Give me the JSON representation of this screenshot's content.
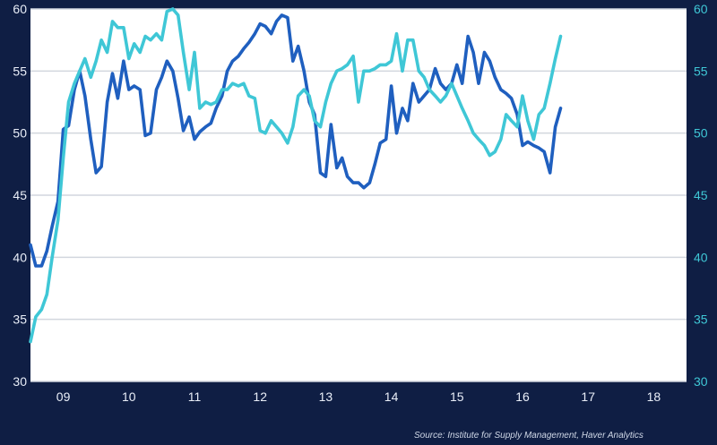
{
  "colors": {
    "background": "#0f1e44",
    "plot_background": "#ffffff",
    "grid": "#d2d6de",
    "series_dark": "#1f5fbf",
    "series_light": "#3fc7d6",
    "left_axis_text": "#e9eef8",
    "right_axis_text": "#3fc7d6"
  },
  "source": "Source: Institute for Supply Management, Haver Analytics",
  "chart_data": {
    "type": "line",
    "ylim": [
      30,
      60
    ],
    "xlim": [
      2008.5,
      2018.5
    ],
    "y_ticks": [
      30,
      35,
      40,
      45,
      50,
      55,
      60
    ],
    "y_ticks_right": [
      30,
      35,
      40,
      45,
      50,
      55,
      60
    ],
    "x_ticks": [
      {
        "x": 2009,
        "label": "09"
      },
      {
        "x": 2010,
        "label": "10"
      },
      {
        "x": 2011,
        "label": "11"
      },
      {
        "x": 2012,
        "label": "12"
      },
      {
        "x": 2013,
        "label": "13"
      },
      {
        "x": 2014,
        "label": "14"
      },
      {
        "x": 2015,
        "label": "15"
      },
      {
        "x": 2016,
        "label": "16"
      },
      {
        "x": 2017,
        "label": "17"
      },
      {
        "x": 2018,
        "label": "18"
      }
    ],
    "grid": true,
    "series": [
      {
        "color": "#1f5fbf",
        "axis": "left",
        "points": [
          [
            2008.5,
            41.0
          ],
          [
            2008.58,
            39.3
          ],
          [
            2008.67,
            39.3
          ],
          [
            2008.75,
            40.5
          ],
          [
            2008.83,
            42.5
          ],
          [
            2008.92,
            44.5
          ],
          [
            2009.0,
            50.3
          ],
          [
            2009.08,
            50.6
          ],
          [
            2009.17,
            53.5
          ],
          [
            2009.25,
            55.0
          ],
          [
            2009.33,
            53.0
          ],
          [
            2009.42,
            49.5
          ],
          [
            2009.5,
            46.8
          ],
          [
            2009.58,
            47.3
          ],
          [
            2009.67,
            52.5
          ],
          [
            2009.75,
            54.8
          ],
          [
            2009.83,
            52.8
          ],
          [
            2009.92,
            55.8
          ],
          [
            2010.0,
            53.5
          ],
          [
            2010.08,
            53.8
          ],
          [
            2010.17,
            53.5
          ],
          [
            2010.25,
            49.8
          ],
          [
            2010.33,
            50.0
          ],
          [
            2010.42,
            53.5
          ],
          [
            2010.5,
            54.5
          ],
          [
            2010.58,
            55.8
          ],
          [
            2010.67,
            55.0
          ],
          [
            2010.75,
            52.8
          ],
          [
            2010.83,
            50.2
          ],
          [
            2010.92,
            51.3
          ],
          [
            2011.0,
            49.5
          ],
          [
            2011.08,
            50.1
          ],
          [
            2011.17,
            50.5
          ],
          [
            2011.25,
            50.8
          ],
          [
            2011.33,
            52.0
          ],
          [
            2011.42,
            53.0
          ],
          [
            2011.5,
            55.0
          ],
          [
            2011.58,
            55.8
          ],
          [
            2011.67,
            56.2
          ],
          [
            2011.75,
            56.8
          ],
          [
            2011.83,
            57.3
          ],
          [
            2011.92,
            58.0
          ],
          [
            2012.0,
            58.8
          ],
          [
            2012.08,
            58.6
          ],
          [
            2012.17,
            58.0
          ],
          [
            2012.25,
            59.0
          ],
          [
            2012.33,
            59.5
          ],
          [
            2012.42,
            59.3
          ],
          [
            2012.5,
            55.8
          ],
          [
            2012.58,
            57.0
          ],
          [
            2012.67,
            55.0
          ],
          [
            2012.75,
            52.5
          ],
          [
            2012.83,
            51.5
          ],
          [
            2012.92,
            46.8
          ],
          [
            2013.0,
            46.5
          ],
          [
            2013.08,
            50.7
          ],
          [
            2013.17,
            47.2
          ],
          [
            2013.25,
            48.0
          ],
          [
            2013.33,
            46.5
          ],
          [
            2013.42,
            46.0
          ],
          [
            2013.5,
            46.0
          ],
          [
            2013.58,
            45.6
          ],
          [
            2013.67,
            46.0
          ],
          [
            2013.75,
            47.5
          ],
          [
            2013.83,
            49.2
          ],
          [
            2013.92,
            49.5
          ],
          [
            2014.0,
            53.8
          ],
          [
            2014.08,
            50.0
          ],
          [
            2014.17,
            52.0
          ],
          [
            2014.25,
            51.0
          ],
          [
            2014.33,
            54.0
          ],
          [
            2014.42,
            52.5
          ],
          [
            2014.5,
            53.0
          ],
          [
            2014.58,
            53.5
          ],
          [
            2014.67,
            55.2
          ],
          [
            2014.75,
            54.0
          ],
          [
            2014.83,
            53.5
          ],
          [
            2014.92,
            54.0
          ],
          [
            2015.0,
            55.5
          ],
          [
            2015.08,
            54.0
          ],
          [
            2015.17,
            57.8
          ],
          [
            2015.25,
            56.5
          ],
          [
            2015.33,
            54.0
          ],
          [
            2015.42,
            56.5
          ],
          [
            2015.5,
            55.8
          ],
          [
            2015.58,
            54.5
          ],
          [
            2015.67,
            53.5
          ],
          [
            2015.75,
            53.2
          ],
          [
            2015.83,
            52.8
          ],
          [
            2015.92,
            51.5
          ],
          [
            2016.0,
            49.0
          ],
          [
            2016.08,
            49.3
          ],
          [
            2016.17,
            49.0
          ],
          [
            2016.25,
            48.8
          ],
          [
            2016.33,
            48.5
          ],
          [
            2016.42,
            46.8
          ],
          [
            2016.5,
            50.5
          ],
          [
            2016.58,
            52.0
          ]
        ]
      },
      {
        "color": "#3fc7d6",
        "axis": "right",
        "points": [
          [
            2008.5,
            33.2
          ],
          [
            2008.58,
            35.2
          ],
          [
            2008.67,
            35.8
          ],
          [
            2008.75,
            37.0
          ],
          [
            2008.83,
            40.0
          ],
          [
            2008.92,
            43.0
          ],
          [
            2009.0,
            48.0
          ],
          [
            2009.08,
            52.5
          ],
          [
            2009.17,
            54.0
          ],
          [
            2009.25,
            55.0
          ],
          [
            2009.33,
            56.0
          ],
          [
            2009.42,
            54.5
          ],
          [
            2009.5,
            55.8
          ],
          [
            2009.58,
            57.5
          ],
          [
            2009.67,
            56.5
          ],
          [
            2009.75,
            59.0
          ],
          [
            2009.83,
            58.5
          ],
          [
            2009.92,
            58.5
          ],
          [
            2010.0,
            56.0
          ],
          [
            2010.08,
            57.2
          ],
          [
            2010.17,
            56.5
          ],
          [
            2010.25,
            57.8
          ],
          [
            2010.33,
            57.5
          ],
          [
            2010.42,
            58.0
          ],
          [
            2010.5,
            57.5
          ],
          [
            2010.58,
            59.8
          ],
          [
            2010.67,
            60.0
          ],
          [
            2010.75,
            59.5
          ],
          [
            2010.83,
            56.5
          ],
          [
            2010.92,
            53.5
          ],
          [
            2011.0,
            56.5
          ],
          [
            2011.08,
            52.0
          ],
          [
            2011.17,
            52.5
          ],
          [
            2011.25,
            52.3
          ],
          [
            2011.33,
            52.5
          ],
          [
            2011.42,
            53.5
          ],
          [
            2011.5,
            53.5
          ],
          [
            2011.58,
            54.0
          ],
          [
            2011.67,
            53.8
          ],
          [
            2011.75,
            54.0
          ],
          [
            2011.83,
            53.0
          ],
          [
            2011.92,
            52.8
          ],
          [
            2012.0,
            50.2
          ],
          [
            2012.08,
            50.0
          ],
          [
            2012.17,
            51.0
          ],
          [
            2012.25,
            50.5
          ],
          [
            2012.33,
            50.0
          ],
          [
            2012.42,
            49.2
          ],
          [
            2012.5,
            50.5
          ],
          [
            2012.58,
            53.0
          ],
          [
            2012.67,
            53.5
          ],
          [
            2012.75,
            53.0
          ],
          [
            2012.83,
            51.0
          ],
          [
            2012.92,
            50.5
          ],
          [
            2013.0,
            52.5
          ],
          [
            2013.08,
            54.0
          ],
          [
            2013.17,
            55.0
          ],
          [
            2013.25,
            55.2
          ],
          [
            2013.33,
            55.5
          ],
          [
            2013.42,
            56.2
          ],
          [
            2013.5,
            52.5
          ],
          [
            2013.58,
            55.0
          ],
          [
            2013.67,
            55.0
          ],
          [
            2013.75,
            55.2
          ],
          [
            2013.83,
            55.5
          ],
          [
            2013.92,
            55.5
          ],
          [
            2014.0,
            55.8
          ],
          [
            2014.08,
            58.0
          ],
          [
            2014.17,
            55.0
          ],
          [
            2014.25,
            57.5
          ],
          [
            2014.33,
            57.5
          ],
          [
            2014.42,
            55.0
          ],
          [
            2014.5,
            54.5
          ],
          [
            2014.58,
            53.5
          ],
          [
            2014.67,
            53.0
          ],
          [
            2014.75,
            52.5
          ],
          [
            2014.83,
            53.0
          ],
          [
            2014.92,
            54.0
          ],
          [
            2015.0,
            53.0
          ],
          [
            2015.08,
            52.0
          ],
          [
            2015.17,
            51.0
          ],
          [
            2015.25,
            50.0
          ],
          [
            2015.33,
            49.5
          ],
          [
            2015.42,
            49.0
          ],
          [
            2015.5,
            48.2
          ],
          [
            2015.58,
            48.5
          ],
          [
            2015.67,
            49.5
          ],
          [
            2015.75,
            51.5
          ],
          [
            2015.83,
            51.0
          ],
          [
            2015.92,
            50.5
          ],
          [
            2016.0,
            53.0
          ],
          [
            2016.08,
            51.0
          ],
          [
            2016.17,
            49.5
          ],
          [
            2016.25,
            51.5
          ],
          [
            2016.33,
            52.0
          ],
          [
            2016.42,
            54.0
          ],
          [
            2016.5,
            56.0
          ],
          [
            2016.58,
            57.8
          ]
        ]
      }
    ]
  }
}
